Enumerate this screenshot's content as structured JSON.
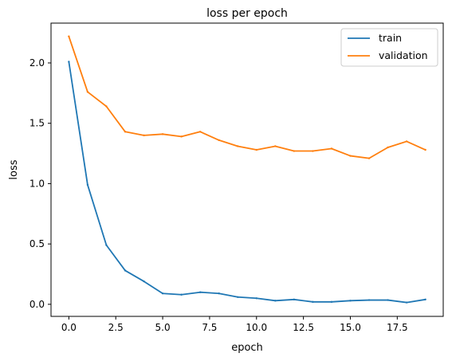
{
  "chart_data": {
    "type": "line",
    "title": "loss per epoch",
    "xlabel": "epoch",
    "ylabel": "loss",
    "xlim": [
      -0.95,
      19.95
    ],
    "ylim": [
      -0.1,
      2.33
    ],
    "xticks": [
      0.0,
      2.5,
      5.0,
      7.5,
      10.0,
      12.5,
      15.0,
      17.5
    ],
    "xtick_labels": [
      "0.0",
      "2.5",
      "5.0",
      "7.5",
      "10.0",
      "12.5",
      "15.0",
      "17.5"
    ],
    "yticks": [
      0.0,
      0.5,
      1.0,
      1.5,
      2.0
    ],
    "ytick_labels": [
      "0.0",
      "0.5",
      "1.0",
      "1.5",
      "2.0"
    ],
    "grid": false,
    "legend_position": "top-right",
    "x": [
      0,
      1,
      2,
      3,
      4,
      5,
      6,
      7,
      8,
      9,
      10,
      11,
      12,
      13,
      14,
      15,
      16,
      17,
      18,
      19
    ],
    "series": [
      {
        "name": "train",
        "color": "#1f77b4",
        "values": [
          2.01,
          0.99,
          0.49,
          0.28,
          0.19,
          0.09,
          0.08,
          0.1,
          0.09,
          0.06,
          0.05,
          0.03,
          0.04,
          0.02,
          0.02,
          0.03,
          0.035,
          0.035,
          0.015,
          0.04
        ]
      },
      {
        "name": "validation",
        "color": "#ff7f0e",
        "values": [
          2.22,
          1.76,
          1.64,
          1.43,
          1.4,
          1.41,
          1.39,
          1.43,
          1.36,
          1.31,
          1.28,
          1.31,
          1.27,
          1.27,
          1.29,
          1.23,
          1.21,
          1.3,
          1.35,
          1.28
        ]
      }
    ]
  }
}
